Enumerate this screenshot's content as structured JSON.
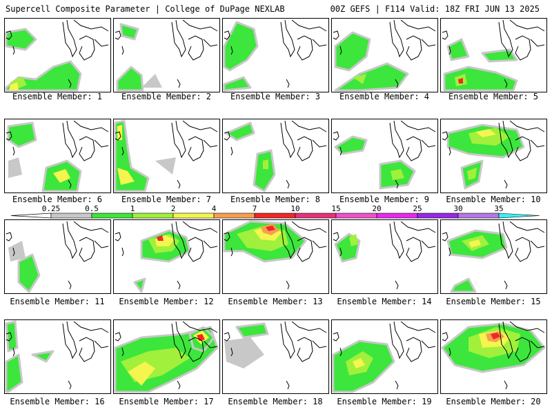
{
  "header": {
    "title_left": "Supercell Composite Parameter | College of DuPage NEXLAB",
    "title_right": "00Z GEFS | F114 Valid: 18Z FRI JUN 13 2025"
  },
  "member_label_prefix": "Ensemble Member:",
  "members": [
    {
      "number": "1",
      "peak": 2.5
    },
    {
      "number": "2",
      "peak": 1.5
    },
    {
      "number": "3",
      "peak": 1.5
    },
    {
      "number": "4",
      "peak": 1.5
    },
    {
      "number": "5",
      "peak": 6
    },
    {
      "number": "6",
      "peak": 3
    },
    {
      "number": "7",
      "peak": 3
    },
    {
      "number": "8",
      "peak": 1
    },
    {
      "number": "9",
      "peak": 1.5
    },
    {
      "number": "10",
      "peak": 3
    },
    {
      "number": "11",
      "peak": 0.75
    },
    {
      "number": "12",
      "peak": 5
    },
    {
      "number": "13",
      "peak": 6
    },
    {
      "number": "14",
      "peak": 1
    },
    {
      "number": "15",
      "peak": 2.5
    },
    {
      "number": "16",
      "peak": 1.5
    },
    {
      "number": "17",
      "peak": 9
    },
    {
      "number": "18",
      "peak": 1.5
    },
    {
      "number": "19",
      "peak": 2.5
    },
    {
      "number": "20",
      "peak": 9
    }
  ],
  "legend": {
    "labels": [
      "0.25",
      "0.5",
      "1",
      "2",
      "4",
      "7",
      "10",
      "15",
      "20",
      "25",
      "30",
      "35"
    ],
    "colors": [
      "#c8c8c8",
      "#3ce63c",
      "#a0f03c",
      "#f5f550",
      "#f5a050",
      "#f02828",
      "#e63278",
      "#f050c8",
      "#e628f0",
      "#9628e6",
      "#b478e6",
      "#3cf0f0"
    ]
  },
  "map_style": {
    "outline_color": "#000000",
    "contour_fill_colors": [
      "#c8c8c8",
      "#3ce63c",
      "#a0f03c",
      "#f5f550",
      "#f5a050",
      "#f02828"
    ]
  }
}
